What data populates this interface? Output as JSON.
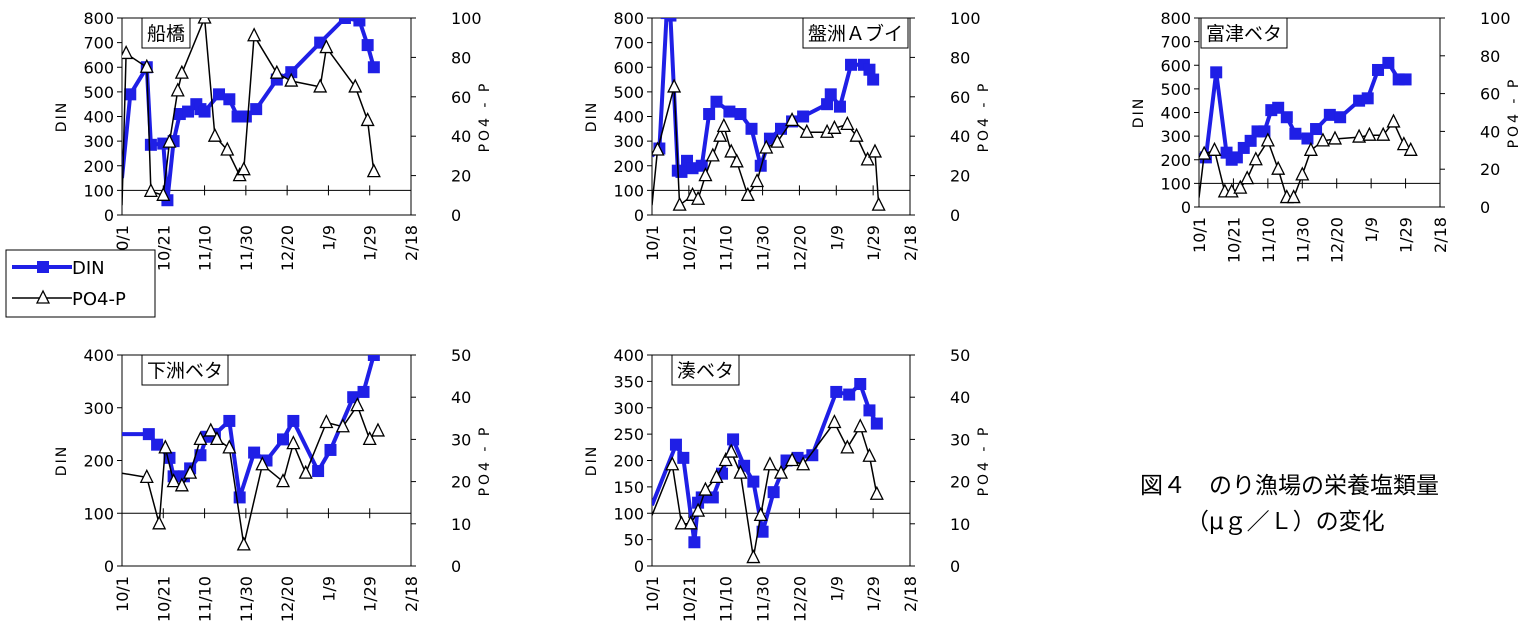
{
  "x_ticks": [
    "10/1",
    "10/21",
    "11/10",
    "11/30",
    "12/20",
    "1/9",
    "1/29",
    "2/18"
  ],
  "left_axis_label": "DIN",
  "right_axis_label": "PO4 - P",
  "legend": {
    "din": "DIN",
    "po4": "PO4-P"
  },
  "colors": {
    "din": "#1f1fe6",
    "po4": "#000000"
  },
  "caption": {
    "line1": "図４　のり漁場の栄養塩類量",
    "line2": "（μｇ／Ｌ）の変化"
  },
  "chart_data": [
    {
      "type": "line",
      "title": "船橋",
      "x_domain": [
        "10/1",
        "2/18"
      ],
      "ylim_left": [
        0,
        800
      ],
      "yticks_left": [
        0,
        100,
        200,
        300,
        400,
        500,
        600,
        700,
        800
      ],
      "ylim_right": [
        0,
        100
      ],
      "yticks_right": [
        0,
        20,
        40,
        60,
        80,
        100
      ],
      "series": [
        {
          "name": "DIN",
          "axis": "left",
          "marker": "square",
          "x": [
            "10/1",
            "10/5",
            "10/13",
            "10/15",
            "10/21",
            "10/23",
            "10/26",
            "10/29",
            "11/2",
            "11/6",
            "11/8",
            "11/10",
            "11/17",
            "11/22",
            "11/26",
            "11/30",
            "12/5",
            "12/15",
            "12/22",
            "1/5",
            "1/17",
            "1/24",
            "1/28",
            "1/31"
          ],
          "y": [
            150,
            490,
            600,
            285,
            290,
            60,
            300,
            410,
            420,
            450,
            430,
            420,
            490,
            470,
            400,
            400,
            430,
            550,
            580,
            700,
            800,
            790,
            690,
            600
          ]
        },
        {
          "name": "PO4-P",
          "axis": "right",
          "marker": "triangle",
          "x": [
            "10/1",
            "10/3",
            "10/13",
            "10/15",
            "10/21",
            "10/24",
            "10/28",
            "10/30",
            "11/10",
            "11/15",
            "11/21",
            "11/27",
            "11/29",
            "12/4",
            "12/15",
            "12/22",
            "1/5",
            "1/8",
            "1/22",
            "1/28",
            "1/31"
          ],
          "y": [
            5,
            82,
            75,
            12,
            10,
            37,
            63,
            72,
            100,
            40,
            33,
            20,
            23,
            91,
            72,
            68,
            65,
            85,
            65,
            48,
            22
          ]
        }
      ]
    },
    {
      "type": "line",
      "title": "盤洲Ａブイ",
      "x_domain": [
        "10/1",
        "2/18"
      ],
      "ylim_left": [
        0,
        800
      ],
      "yticks_left": [
        0,
        100,
        200,
        300,
        400,
        500,
        600,
        700,
        800
      ],
      "ylim_right": [
        0,
        100
      ],
      "yticks_right": [
        0,
        20,
        40,
        60,
        80,
        100
      ],
      "series": [
        {
          "name": "DIN",
          "axis": "left",
          "marker": "square",
          "x": [
            "10/1",
            "10/5",
            "10/9",
            "10/11",
            "10/15",
            "10/17",
            "10/20",
            "10/23",
            "10/28",
            "11/1",
            "11/5",
            "11/12",
            "11/18",
            "11/24",
            "11/29",
            "12/4",
            "12/10",
            "12/16",
            "12/22",
            "1/4",
            "1/6",
            "1/11",
            "1/17",
            "1/24",
            "1/27",
            "1/29"
          ],
          "y": [
            240,
            270,
            820,
            810,
            180,
            175,
            220,
            190,
            200,
            410,
            460,
            420,
            410,
            350,
            200,
            310,
            350,
            380,
            400,
            450,
            490,
            440,
            610,
            610,
            590,
            550
          ]
        },
        {
          "name": "PO4-P",
          "axis": "right",
          "marker": "triangle",
          "x": [
            "10/1",
            "10/4",
            "10/13",
            "10/16",
            "10/23",
            "10/26",
            "10/30",
            "11/3",
            "11/7",
            "11/9",
            "11/13",
            "11/16",
            "11/22",
            "11/27",
            "12/2",
            "12/8",
            "12/16",
            "12/24",
            "1/4",
            "1/8",
            "1/15",
            "1/20",
            "1/26",
            "1/30",
            "2/1"
          ],
          "y": [
            5,
            33,
            65,
            5,
            10,
            8,
            20,
            30,
            40,
            45,
            32,
            27,
            10,
            17,
            34,
            37,
            48,
            42,
            42,
            44,
            46,
            40,
            28,
            32,
            5
          ]
        }
      ]
    },
    {
      "type": "line",
      "title": "富津ベタ",
      "x_domain": [
        "10/1",
        "2/18"
      ],
      "ylim_left": [
        0,
        800
      ],
      "yticks_left": [
        0,
        100,
        200,
        300,
        400,
        500,
        600,
        700,
        800
      ],
      "ylim_right": [
        0,
        100
      ],
      "yticks_right": [
        0,
        20,
        40,
        60,
        80,
        100
      ],
      "series": [
        {
          "name": "DIN",
          "axis": "left",
          "marker": "square",
          "x": [
            "10/1",
            "10/5",
            "10/11",
            "10/17",
            "10/20",
            "10/23",
            "10/27",
            "10/31",
            "11/4",
            "11/8",
            "11/12",
            "11/16",
            "11/21",
            "11/26",
            "12/3",
            "12/8",
            "12/16",
            "12/22",
            "1/2",
            "1/7",
            "1/13",
            "1/19",
            "1/25",
            "1/29"
          ],
          "y": [
            220,
            210,
            570,
            230,
            200,
            210,
            250,
            280,
            320,
            320,
            410,
            420,
            380,
            310,
            290,
            330,
            390,
            380,
            450,
            460,
            580,
            610,
            540,
            540
          ]
        },
        {
          "name": "PO4-P",
          "axis": "right",
          "marker": "triangle",
          "x": [
            "10/1",
            "10/4",
            "10/10",
            "10/16",
            "10/20",
            "10/25",
            "10/29",
            "11/3",
            "11/10",
            "11/16",
            "11/21",
            "11/25",
            "11/30",
            "12/5",
            "12/12",
            "12/19",
            "1/2",
            "1/8",
            "1/16",
            "1/22",
            "1/28",
            "2/1"
          ],
          "y": [
            5,
            28,
            30,
            8,
            8,
            10,
            15,
            25,
            35,
            20,
            5,
            5,
            17,
            30,
            35,
            36,
            37,
            38,
            38,
            45,
            33,
            30
          ]
        }
      ]
    },
    {
      "type": "line",
      "title": "下洲ベタ",
      "x_domain": [
        "10/1",
        "2/18"
      ],
      "ylim_left": [
        0,
        400
      ],
      "yticks_left": [
        0,
        100,
        200,
        300,
        400
      ],
      "ylim_right": [
        0,
        50
      ],
      "yticks_right": [
        0,
        10,
        20,
        30,
        40,
        50
      ],
      "series": [
        {
          "name": "DIN",
          "axis": "left",
          "marker": "square",
          "x": [
            "10/1",
            "10/14",
            "10/18",
            "10/24",
            "10/26",
            "10/31",
            "11/3",
            "11/8",
            "11/11",
            "11/15",
            "11/22",
            "11/27",
            "12/4",
            "12/10",
            "12/18",
            "12/23",
            "1/4",
            "1/10",
            "1/21",
            "1/26",
            "1/31"
          ],
          "y": [
            250,
            250,
            230,
            205,
            170,
            170,
            185,
            210,
            245,
            250,
            275,
            130,
            215,
            200,
            240,
            275,
            180,
            220,
            320,
            330,
            400
          ]
        },
        {
          "name": "PO4-P",
          "axis": "right",
          "marker": "triangle",
          "x": [
            "10/1",
            "10/13",
            "10/19",
            "10/22",
            "10/26",
            "10/30",
            "11/3",
            "11/8",
            "11/13",
            "11/16",
            "11/22",
            "11/29",
            "12/8",
            "12/18",
            "12/23",
            "12/29",
            "1/8",
            "1/16",
            "1/23",
            "1/29",
            "2/2"
          ],
          "y": [
            22,
            21,
            10,
            28,
            20,
            19,
            22,
            30,
            32,
            30,
            28,
            5,
            24,
            20,
            29,
            22,
            34,
            33,
            38,
            30,
            32
          ]
        }
      ]
    },
    {
      "type": "line",
      "title": "湊ベタ",
      "x_domain": [
        "10/1",
        "2/18"
      ],
      "ylim_left": [
        0,
        400
      ],
      "yticks_left": [
        0,
        50,
        100,
        150,
        200,
        250,
        300,
        350,
        400
      ],
      "ylim_right": [
        0,
        50
      ],
      "yticks_right": [
        0,
        10,
        20,
        30,
        40,
        50
      ],
      "series": [
        {
          "name": "DIN",
          "axis": "left",
          "marker": "square",
          "x": [
            "10/1",
            "10/14",
            "10/18",
            "10/24",
            "10/26",
            "10/28",
            "11/3",
            "11/8",
            "11/14",
            "11/20",
            "11/25",
            "11/30",
            "12/6",
            "12/13",
            "12/19",
            "12/27",
            "1/9",
            "1/16",
            "1/22",
            "1/27",
            "1/31"
          ],
          "y": [
            115,
            230,
            205,
            45,
            120,
            130,
            130,
            175,
            240,
            190,
            160,
            65,
            140,
            200,
            205,
            210,
            330,
            325,
            345,
            295,
            270
          ]
        },
        {
          "name": "PO4-P",
          "axis": "right",
          "marker": "triangle",
          "x": [
            "10/1",
            "10/12",
            "10/17",
            "10/22",
            "10/26",
            "10/30",
            "11/5",
            "11/10",
            "11/13",
            "11/18",
            "11/25",
            "11/29",
            "12/4",
            "12/10",
            "12/16",
            "12/22",
            "1/8",
            "1/15",
            "1/22",
            "1/27",
            "1/31"
          ],
          "y": [
            12,
            24,
            10,
            10,
            13,
            18,
            21,
            25,
            27,
            22,
            2,
            12,
            24,
            22,
            25,
            24,
            34,
            28,
            33,
            26,
            17
          ]
        }
      ]
    }
  ]
}
